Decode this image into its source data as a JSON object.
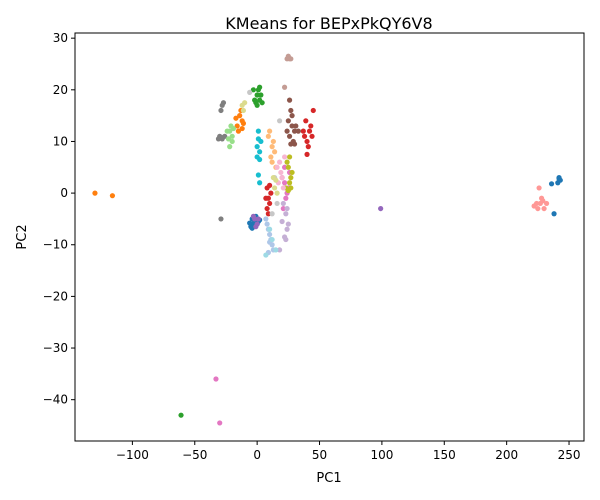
{
  "chart_data": {
    "type": "scatter",
    "title": "KMeans for BEPxPkQY6V8",
    "xlabel": "PC1",
    "ylabel": "PC2",
    "xlim": [
      -146,
      262
    ],
    "ylim": [
      -48,
      31
    ],
    "xticks": [
      -100,
      -50,
      0,
      50,
      100,
      150,
      200,
      250
    ],
    "yticks": [
      -40,
      -30,
      -20,
      -10,
      0,
      10,
      20,
      30
    ],
    "grid": false,
    "legend": "none",
    "clusters": [
      {
        "color": "#1f77b4",
        "points": [
          [
            -4,
            -5
          ],
          [
            -2,
            -5.5
          ],
          [
            0,
            -5
          ],
          [
            -3,
            -6
          ],
          [
            -5,
            -6.5
          ],
          [
            -1,
            -4.5
          ],
          [
            1,
            -5.5
          ],
          [
            -4,
            -6.8
          ],
          [
            -2,
            -5
          ],
          [
            0,
            -6
          ],
          [
            2,
            -5.2
          ],
          [
            -6,
            -5.8
          ],
          [
            -3,
            -4.8
          ],
          [
            242,
            3
          ],
          [
            243,
            2.5
          ],
          [
            241,
            2
          ],
          [
            236,
            1.8
          ],
          [
            238,
            -4
          ],
          [
            242,
            2.8
          ]
        ]
      },
      {
        "color": "#ff7f0e",
        "points": [
          [
            -130,
            0
          ],
          [
            -116,
            -0.5
          ],
          [
            -14,
            15
          ],
          [
            -12,
            14
          ],
          [
            -16,
            13
          ],
          [
            -13,
            16
          ],
          [
            -15,
            12
          ],
          [
            -11,
            13.5
          ],
          [
            -17,
            14.5
          ],
          [
            -12,
            12.5
          ]
        ]
      },
      {
        "color": "#2ca02c",
        "points": [
          [
            -61,
            -43
          ],
          [
            -3,
            20
          ],
          [
            0,
            19
          ],
          [
            2,
            18
          ],
          [
            -1,
            17.5
          ],
          [
            1,
            20
          ],
          [
            3,
            19
          ],
          [
            -2,
            18
          ],
          [
            0,
            17
          ],
          [
            2,
            20.5
          ],
          [
            4,
            17.5
          ]
        ]
      },
      {
        "color": "#d62728",
        "points": [
          [
            8,
            1
          ],
          [
            9,
            -1
          ],
          [
            10,
            -2
          ],
          [
            8,
            -3
          ],
          [
            11,
            0
          ],
          [
            9,
            -4
          ],
          [
            7,
            -1
          ],
          [
            10,
            1.5
          ],
          [
            38,
            11
          ],
          [
            42,
            12
          ],
          [
            40,
            10
          ],
          [
            44,
            11
          ],
          [
            45,
            16
          ],
          [
            39,
            14
          ],
          [
            41,
            9
          ],
          [
            43,
            13
          ],
          [
            37,
            12
          ],
          [
            40,
            7.5
          ]
        ]
      },
      {
        "color": "#9467bd",
        "points": [
          [
            -2,
            -5
          ],
          [
            -1,
            -6.5
          ],
          [
            1,
            -5
          ],
          [
            -3,
            -4.5
          ],
          [
            99,
            -3
          ],
          [
            0,
            -6
          ]
        ]
      },
      {
        "color": "#8c564b",
        "points": [
          [
            25,
            14
          ],
          [
            28,
            13
          ],
          [
            27,
            16
          ],
          [
            30,
            12
          ],
          [
            26,
            11
          ],
          [
            29,
            10
          ],
          [
            31,
            13
          ],
          [
            24,
            12
          ],
          [
            28,
            15
          ],
          [
            26,
            18
          ],
          [
            33,
            12
          ],
          [
            30,
            9.5
          ],
          [
            27,
            9.5
          ]
        ]
      },
      {
        "color": "#e377c2",
        "points": [
          [
            -33,
            -36
          ],
          [
            -30,
            -44.5
          ],
          [
            22,
            2
          ],
          [
            24,
            0
          ],
          [
            20,
            3
          ],
          [
            23,
            -1
          ],
          [
            25,
            1
          ],
          [
            21,
            -3
          ],
          [
            22,
            5
          ],
          [
            26,
            4
          ]
        ]
      },
      {
        "color": "#7f7f7f",
        "points": [
          [
            -28,
            17
          ],
          [
            -29,
            16
          ],
          [
            -27,
            17.5
          ],
          [
            -30,
            11
          ],
          [
            -28,
            10.5
          ],
          [
            -26,
            11
          ],
          [
            -29,
            10.8
          ],
          [
            -31,
            10.5
          ],
          [
            -29,
            -5
          ]
        ]
      },
      {
        "color": "#bcbd22",
        "points": [
          [
            25,
            5
          ],
          [
            27,
            3
          ],
          [
            24,
            6
          ],
          [
            26,
            2
          ],
          [
            28,
            4
          ],
          [
            23,
            1
          ],
          [
            27,
            1
          ],
          [
            25,
            0.5
          ],
          [
            26,
            7
          ]
        ]
      },
      {
        "color": "#17becf",
        "points": [
          [
            1,
            12
          ],
          [
            0,
            9
          ],
          [
            2,
            8
          ],
          [
            3,
            10
          ],
          [
            1,
            10.5
          ],
          [
            0,
            7
          ],
          [
            2,
            6.5
          ],
          [
            1,
            3.5
          ],
          [
            2,
            2
          ]
        ]
      },
      {
        "color": "#aec7e8",
        "points": [
          [
            8,
            -6
          ],
          [
            10,
            -8
          ],
          [
            12,
            -10
          ],
          [
            11,
            -9
          ],
          [
            9,
            -11.5
          ],
          [
            13,
            -11
          ],
          [
            10,
            -9.5
          ],
          [
            7,
            -5
          ],
          [
            9,
            -7
          ]
        ]
      },
      {
        "color": "#ffbb78",
        "points": [
          [
            10,
            12
          ],
          [
            12,
            9
          ],
          [
            14,
            8
          ],
          [
            11,
            7
          ],
          [
            13,
            10
          ],
          [
            9,
            11
          ],
          [
            15,
            5
          ],
          [
            12,
            6
          ]
        ]
      },
      {
        "color": "#98df8a",
        "points": [
          [
            -22,
            12
          ],
          [
            -20,
            11
          ],
          [
            -21,
            13
          ],
          [
            -23,
            10.5
          ],
          [
            -19,
            12.5
          ],
          [
            -22,
            9
          ],
          [
            -20,
            10
          ],
          [
            -24,
            12
          ]
        ]
      },
      {
        "color": "#ff9896",
        "points": [
          [
            226,
            1
          ],
          [
            228,
            -1
          ],
          [
            224,
            -2
          ],
          [
            230,
            -3
          ],
          [
            232,
            -2
          ],
          [
            225,
            -3
          ],
          [
            222,
            -2.5
          ],
          [
            227,
            -2
          ],
          [
            229,
            -1.5
          ]
        ]
      },
      {
        "color": "#c5b0d5",
        "points": [
          [
            24,
            -7
          ],
          [
            23,
            -9
          ],
          [
            22,
            -8.5
          ],
          [
            25,
            -6
          ],
          [
            21,
            -2
          ],
          [
            23,
            -4
          ],
          [
            20,
            -5.5
          ],
          [
            18,
            -11
          ],
          [
            24,
            -3
          ]
        ]
      },
      {
        "color": "#c49c94",
        "points": [
          [
            26,
            26
          ],
          [
            25,
            26.5
          ],
          [
            27,
            26
          ],
          [
            22,
            20.5
          ],
          [
            24,
            26
          ]
        ]
      },
      {
        "color": "#f7b6d2",
        "points": [
          [
            18,
            6
          ],
          [
            20,
            3
          ],
          [
            22,
            7
          ],
          [
            17,
            2
          ],
          [
            19,
            4
          ],
          [
            21,
            1
          ],
          [
            16,
            5
          ]
        ]
      },
      {
        "color": "#c7c7c7",
        "points": [
          [
            -6,
            19.5
          ],
          [
            18,
            14
          ],
          [
            16,
            -2
          ],
          [
            12,
            -4
          ],
          [
            14,
            3
          ]
        ]
      },
      {
        "color": "#dbdb8d",
        "points": [
          [
            -12,
            17
          ],
          [
            -10,
            17.5
          ],
          [
            -11,
            16
          ],
          [
            14,
            1
          ],
          [
            15,
            2.5
          ],
          [
            13,
            3
          ],
          [
            16,
            0
          ]
        ]
      },
      {
        "color": "#9edae5",
        "points": [
          [
            7,
            -12
          ],
          [
            15,
            -11
          ],
          [
            12,
            -9
          ],
          [
            10,
            -7
          ]
        ]
      }
    ]
  }
}
